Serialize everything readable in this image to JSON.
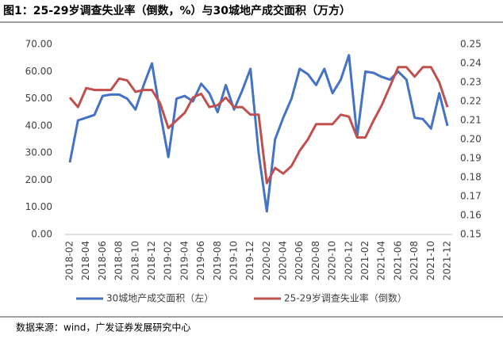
{
  "chart_data": {
    "type": "line",
    "title": "图1：25-29岁调查失业率（倒数，%）与30城地产成交面积（万方）",
    "source": "数据来源：wind，广发证券发展研究中心",
    "categories": [
      "2018-02",
      null,
      "2018-04",
      null,
      "2018-06",
      null,
      "2018-08",
      null,
      "2018-10",
      null,
      "2018-12",
      null,
      "2019-02",
      null,
      "2019-04",
      null,
      "2019-06",
      null,
      "2019-08",
      null,
      "2019-10",
      null,
      "2019-12",
      null,
      "2020-02",
      null,
      "2020-04",
      null,
      "2020-06",
      null,
      "2020-08",
      null,
      "2020-10",
      null,
      "2020-12",
      null,
      "2021-02",
      null,
      "2021-04",
      null,
      "2021-06",
      null,
      "2021-08",
      null,
      "2021-10",
      null,
      "2021-12"
    ],
    "series": [
      {
        "name": "30城地产成交面积（左）",
        "color": "#4472c4",
        "values": [
          26.5,
          42,
          43,
          44,
          51,
          51.5,
          51.5,
          50,
          46,
          55,
          63,
          45,
          28.5,
          50,
          51,
          49,
          55.5,
          52,
          45,
          55,
          46,
          53,
          61,
          30,
          8.5,
          35,
          43,
          50,
          61,
          59,
          55,
          61,
          52,
          57,
          66,
          36,
          60,
          59.5,
          58,
          57,
          60,
          57,
          43,
          42.5,
          39,
          52,
          40
        ]
      },
      {
        "name": "25-29岁调查失业率（倒数）",
        "color": "#c0504d",
        "axis": "y2",
        "values": [
          0.222,
          0.217,
          0.227,
          0.226,
          0.226,
          0.226,
          0.232,
          0.231,
          0.225,
          0.226,
          0.226,
          0.219,
          0.206,
          0.21,
          0.214,
          0.222,
          0.224,
          0.217,
          0.218,
          0.222,
          0.217,
          0.217,
          0.213,
          0.213,
          0.177,
          0.185,
          0.182,
          0.186,
          0.194,
          0.2,
          0.208,
          0.208,
          0.208,
          0.213,
          0.212,
          0.201,
          0.201,
          0.21,
          0.218,
          0.228,
          0.238,
          0.238,
          0.233,
          0.238,
          0.238,
          0.23,
          0.217
        ]
      }
    ],
    "ylim": [
      0,
      70
    ],
    "yticks": [
      {
        "value": 0,
        "label": "0.00"
      },
      {
        "value": 10,
        "label": "10.00"
      },
      {
        "value": 20,
        "label": "20.00"
      },
      {
        "value": 30,
        "label": "30.00"
      },
      {
        "value": 40,
        "label": "40.00"
      },
      {
        "value": 50,
        "label": "50.00"
      },
      {
        "value": 60,
        "label": "60.00"
      },
      {
        "value": 70,
        "label": "70.00"
      }
    ],
    "y2lim": [
      0.15,
      0.25
    ],
    "y2ticks": [
      0.15,
      0.16,
      0.17,
      0.18,
      0.19,
      {
        "value": 0.2,
        "label": "0.20"
      },
      0.21,
      0.22,
      0.23,
      0.24,
      0.25
    ],
    "legend": "bottom"
  }
}
